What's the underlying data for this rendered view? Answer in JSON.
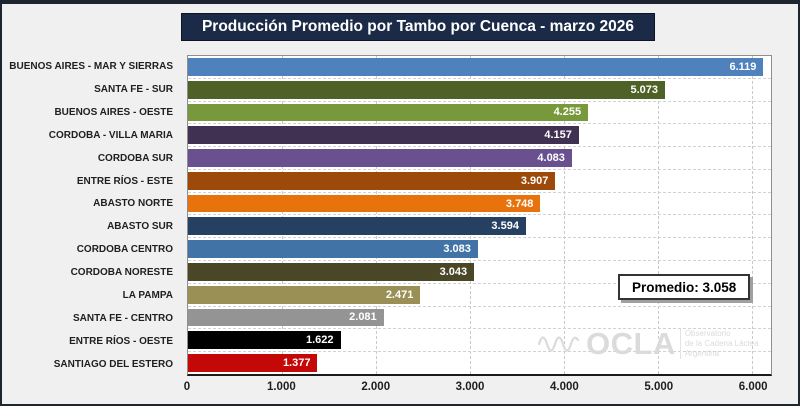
{
  "title": "Producción Promedio por Tambo por Cuenca - marzo 2026",
  "chart_data": {
    "type": "bar",
    "orientation": "horizontal",
    "title": "Producción Promedio por Tambo por Cuenca - marzo 2026",
    "categories": [
      "BUENOS AIRES - MAR Y SIERRAS",
      "SANTA FE - SUR",
      "BUENOS AIRES - OESTE",
      "CORDOBA - VILLA MARIA",
      "CORDOBA SUR",
      "ENTRE RÍOS - ESTE",
      "ABASTO NORTE",
      "ABASTO SUR",
      "CORDOBA CENTRO",
      "CORDOBA NORESTE",
      "LA PAMPA",
      "SANTA FE - CENTRO",
      "ENTRE RÍOS - OESTE",
      "SANTIAGO DEL ESTERO"
    ],
    "values": [
      6119,
      5073,
      4255,
      4157,
      4083,
      3907,
      3748,
      3594,
      3083,
      3043,
      2471,
      2081,
      1622,
      1377
    ],
    "value_labels": [
      "6.119",
      "5.073",
      "4.255",
      "4.157",
      "4.083",
      "3.907",
      "3.748",
      "3.594",
      "3.083",
      "3.043",
      "2.471",
      "2.081",
      "1.622",
      "1.377"
    ],
    "bar_colors": [
      "#4F81BD",
      "#4E6227",
      "#77993C",
      "#403152",
      "#69518F",
      "#9D4909",
      "#E8720C",
      "#254061",
      "#4173A6",
      "#4A4727",
      "#9A9055",
      "#949494",
      "#000000",
      "#C40808"
    ],
    "xlabel": "",
    "ylabel": "",
    "xlim": [
      0,
      6200
    ],
    "x_tick_values": [
      0,
      1000,
      2000,
      3000,
      4000,
      5000,
      6000
    ],
    "x_tick_labels": [
      "0",
      "1.000",
      "2.000",
      "3.000",
      "4.000",
      "5.000",
      "6.000"
    ],
    "grid": "vertical-dashed",
    "legend": "none",
    "annotation": "Promedio: 3.058"
  },
  "annotation": {
    "label": "Promedio: 3.058"
  },
  "watermark": {
    "logo": "OCLA",
    "lines": [
      "Observatorio",
      "de la Cadena Láctea",
      "Argentina"
    ]
  },
  "colors": {
    "title_bg": "#1b2a47",
    "title_text": "#ffffff",
    "chart_bg": "#f0f0f0",
    "plot_bg": "#ffffff",
    "gridline": "#c9c9c9",
    "axis_text": "#1f1f1f",
    "watermark": "#dbdbdb"
  }
}
